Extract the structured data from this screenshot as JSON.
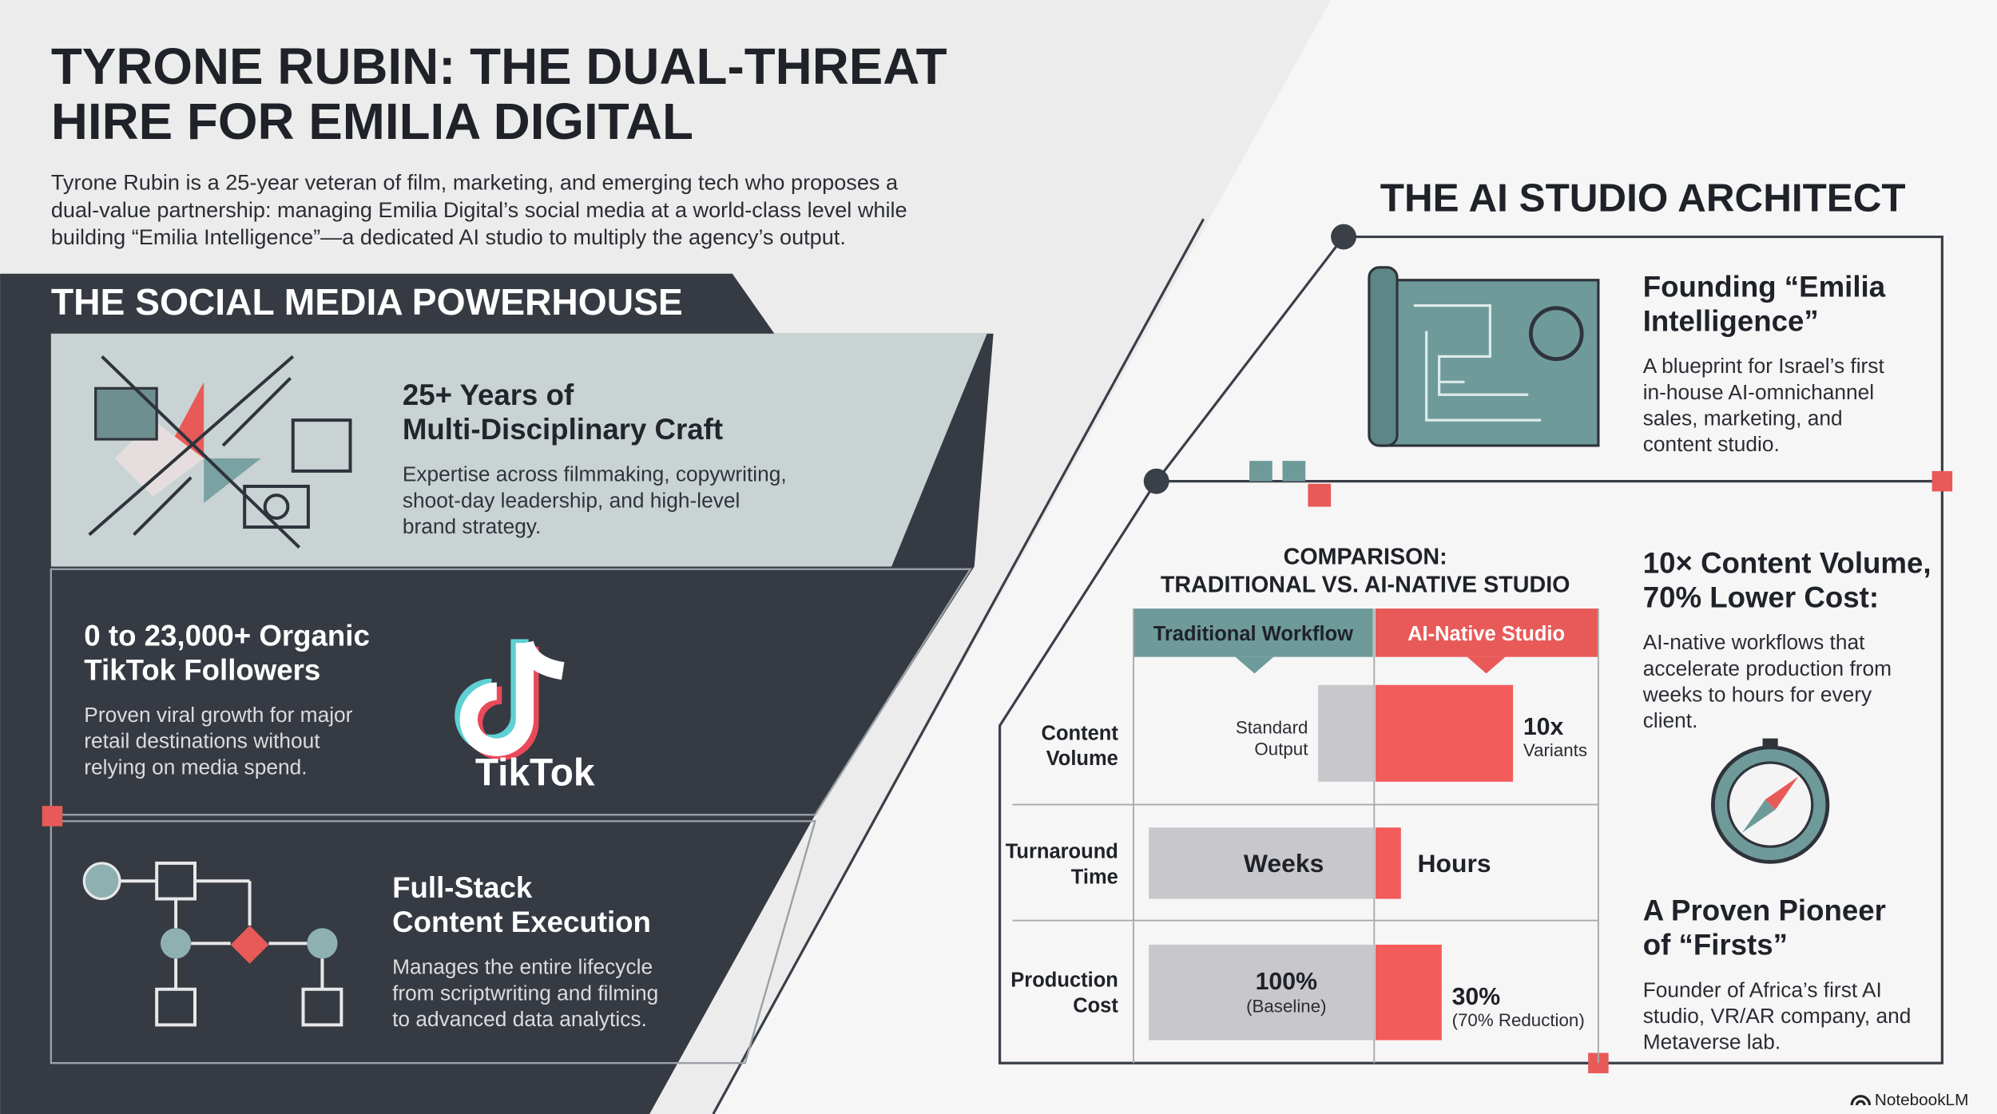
{
  "header": {
    "title": [
      "TYRONE RUBIN: THE DUAL-THREAT",
      "HIRE FOR EMILIA DIGITAL"
    ],
    "intro": [
      "Tyrone Rubin is a 25-year veteran of film, marketing, and emerging tech who proposes a",
      "dual-value partnership: managing Emilia Digital’s social media at a world-class level while",
      "building “Emilia Intelligence”—a dedicated AI studio to multiply the agency’s output."
    ]
  },
  "left": {
    "heading": "THE SOCIAL MEDIA POWERHOUSE",
    "cards": [
      {
        "title": [
          "25+ Years of",
          "Multi-Disciplinary Craft"
        ],
        "body": [
          "Expertise across filmmaking, copywriting,",
          "shoot-day leadership, and high-level",
          "brand strategy."
        ]
      },
      {
        "title": [
          "0 to 23,000+ Organic",
          "TikTok Followers"
        ],
        "body": [
          "Proven viral growth for major",
          "retail destinations without",
          "relying on media spend."
        ]
      },
      {
        "title": [
          "Full-Stack",
          "Content Execution"
        ],
        "body": [
          "Manages the entire lifecycle",
          "from scriptwriting and filming",
          "to advanced data analytics."
        ]
      }
    ],
    "logo": "TikTok"
  },
  "right": {
    "heading": "THE AI STUDIO ARCHITECT",
    "blueprint": {
      "title": [
        "Founding “Emilia",
        "Intelligence”"
      ],
      "body": [
        "A blueprint for Israel’s first",
        "in-house AI-omnichannel",
        "sales, marketing, and",
        "content studio."
      ]
    },
    "comparison": {
      "title": [
        "COMPARISON:",
        "TRADITIONAL VS. AI-NATIVE STUDIO"
      ],
      "columns": [
        "Traditional Workflow",
        "AI-Native Studio"
      ],
      "rows": [
        {
          "label": [
            "Content",
            "Volume"
          ],
          "traditional": [
            "Standard",
            "Output"
          ],
          "ai": [
            "10x",
            "Variants"
          ]
        },
        {
          "label": [
            "Turnaround",
            "Time"
          ],
          "traditional": [
            "Weeks"
          ],
          "ai": [
            "Hours"
          ]
        },
        {
          "label": [
            "Production",
            "Cost"
          ],
          "traditional": [
            "100%",
            "(Baseline)"
          ],
          "ai": [
            "30%",
            "(70% Reduction)"
          ]
        }
      ]
    },
    "stats": {
      "title": [
        "10× Content Volume,",
        "70% Lower Cost:"
      ],
      "body": [
        "AI-native workflows that",
        "accelerate production from",
        "weeks to hours for every",
        "client."
      ]
    },
    "pioneer": {
      "title": [
        "A Proven Pioneer",
        "of “Firsts”"
      ],
      "body": [
        "Founder of Africa’s first AI",
        "studio, VR/AR company, and",
        "Metaverse lab."
      ]
    }
  },
  "footer": {
    "brand": "NotebookLM"
  }
}
